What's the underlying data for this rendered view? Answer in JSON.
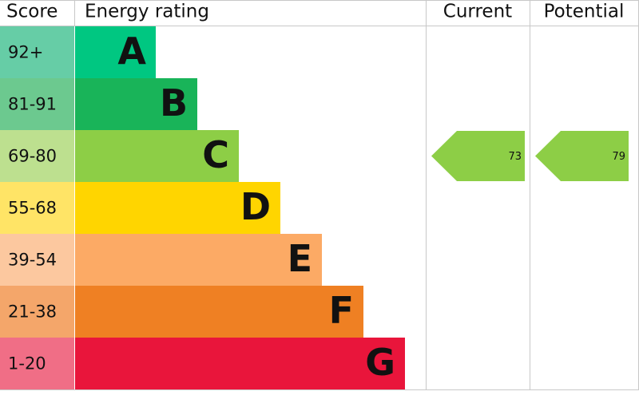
{
  "header": {
    "score": "Score",
    "rating": "Energy rating",
    "current": "Current",
    "potential": "Potential"
  },
  "bands": [
    {
      "score": "92+",
      "letter": "A",
      "color": "#00c781",
      "score_color": "#66cda6"
    },
    {
      "score": "81-91",
      "letter": "B",
      "color": "#19b459",
      "score_color": "#6cc98f"
    },
    {
      "score": "69-80",
      "letter": "C",
      "color": "#8dce46",
      "score_color": "#bde08f"
    },
    {
      "score": "55-68",
      "letter": "D",
      "color": "#ffd500",
      "score_color": "#ffe466"
    },
    {
      "score": "39-54",
      "letter": "E",
      "color": "#fcaa65",
      "score_color": "#fcc89f"
    },
    {
      "score": "21-38",
      "letter": "F",
      "color": "#ef8023",
      "score_color": "#f4a66a"
    },
    {
      "score": "1-20",
      "letter": "G",
      "color": "#e9153b",
      "score_color": "#f06e86"
    }
  ],
  "current": 73,
  "potential": 79
}
